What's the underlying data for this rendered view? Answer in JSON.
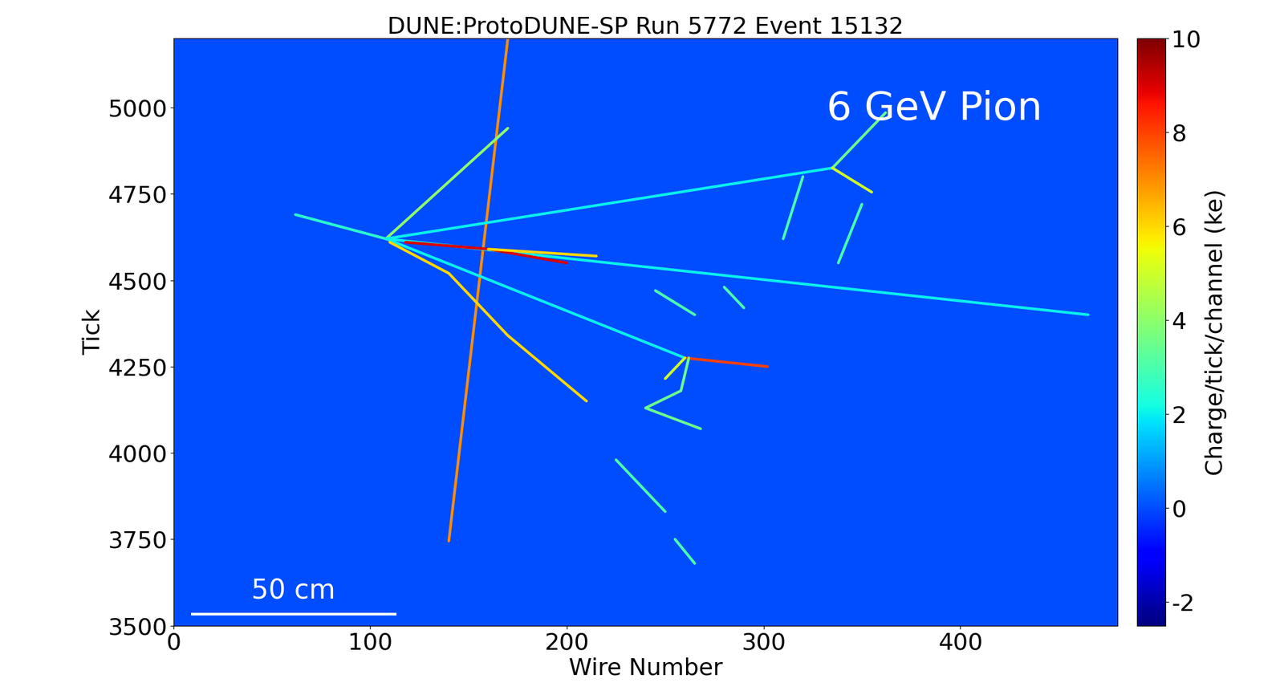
{
  "chart_data": {
    "type": "event_display",
    "title": "DUNE:ProtoDUNE-SP Run 5772 Event 15132",
    "x_label": "Wire Number",
    "y_label": "Tick",
    "xlim": [
      0,
      480
    ],
    "ylim": [
      3500,
      5200
    ],
    "xticks": [
      0,
      100,
      200,
      300,
      400
    ],
    "yticks": [
      3500,
      3750,
      4000,
      4250,
      4500,
      4750,
      5000
    ],
    "annotation": "6 GeV Pion",
    "scale_bar": "50 cm",
    "background_charge": 0,
    "colorbar": {
      "label": "Charge/tick/channel (ke)",
      "range": [
        -2.5,
        10
      ],
      "ticks": [
        -2,
        0,
        2,
        4,
        6,
        8,
        10
      ]
    },
    "tracks": [
      {
        "points": [
          [
            62,
            4690
          ],
          [
            108,
            4620
          ]
        ],
        "charge": 2.5
      },
      {
        "points": [
          [
            140,
            3745
          ],
          [
            170,
            5200
          ]
        ],
        "charge": 7
      },
      {
        "points": [
          [
            108,
            4620
          ],
          [
            170,
            4940
          ]
        ],
        "charge": 4
      },
      {
        "points": [
          [
            108,
            4620
          ],
          [
            335,
            4825
          ]
        ],
        "charge": 2
      },
      {
        "points": [
          [
            335,
            4825
          ],
          [
            362,
            4985
          ]
        ],
        "charge": 3.5
      },
      {
        "points": [
          [
            335,
            4825
          ],
          [
            355,
            4755
          ]
        ],
        "charge": 5
      },
      {
        "points": [
          [
            108,
            4620
          ],
          [
            465,
            4400
          ]
        ],
        "charge": 2
      },
      {
        "points": [
          [
            108,
            4620
          ],
          [
            260,
            4275
          ]
        ],
        "charge": 2
      },
      {
        "points": [
          [
            260,
            4275
          ],
          [
            302,
            4250
          ]
        ],
        "charge": 8
      },
      {
        "points": [
          [
            260,
            4275
          ],
          [
            250,
            4215
          ]
        ],
        "charge": 5
      },
      {
        "points": [
          [
            262,
            4275
          ],
          [
            258,
            4180
          ],
          [
            240,
            4130
          ],
          [
            268,
            4070
          ]
        ],
        "charge": 3.5
      },
      {
        "points": [
          [
            118,
            4610
          ],
          [
            160,
            4590
          ],
          [
            200,
            4550
          ]
        ],
        "charge": 9
      },
      {
        "points": [
          [
            160,
            4590
          ],
          [
            215,
            4570
          ]
        ],
        "charge": 6
      },
      {
        "points": [
          [
            110,
            4610
          ],
          [
            140,
            4520
          ],
          [
            170,
            4340
          ],
          [
            210,
            4150
          ]
        ],
        "charge": 6
      },
      {
        "points": [
          [
            320,
            4800
          ],
          [
            310,
            4620
          ]
        ],
        "charge": 3
      },
      {
        "points": [
          [
            350,
            4720
          ],
          [
            338,
            4550
          ]
        ],
        "charge": 3
      },
      {
        "points": [
          [
            225,
            3980
          ],
          [
            250,
            3830
          ]
        ],
        "charge": 3
      },
      {
        "points": [
          [
            245,
            4470
          ],
          [
            265,
            4400
          ]
        ],
        "charge": 3
      },
      {
        "points": [
          [
            280,
            4480
          ],
          [
            290,
            4420
          ]
        ],
        "charge": 3
      },
      {
        "points": [
          [
            255,
            3750
          ],
          [
            265,
            3680
          ]
        ],
        "charge": 3
      }
    ]
  }
}
